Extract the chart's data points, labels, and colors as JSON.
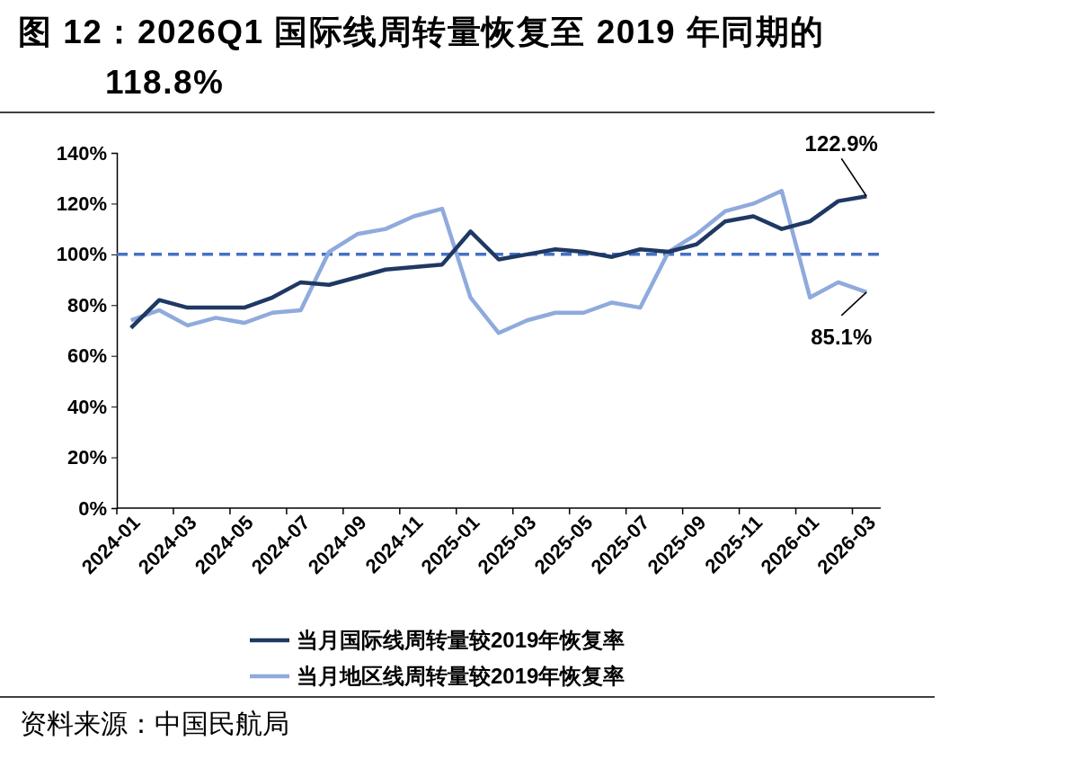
{
  "chart_data": {
    "type": "line",
    "title": "图 12：2026Q1 国际线周转量恢复至 2019 年同期的 118.8%",
    "categories": [
      "2024-01",
      null,
      "2024-03",
      null,
      "2024-05",
      null,
      "2024-07",
      null,
      "2024-09",
      null,
      "2024-11",
      null,
      "2025-01",
      null,
      "2025-03",
      null,
      "2025-05",
      null,
      "2025-07",
      null,
      "2025-09",
      null,
      "2025-11",
      null,
      "2026-01",
      null,
      "2026-03"
    ],
    "series": [
      {
        "name": "当月国际线周转量较2019年恢复率",
        "color": "#1f3864",
        "values": [
          71,
          82,
          79,
          79,
          79,
          83,
          89,
          88,
          91,
          94,
          95,
          96,
          109,
          98,
          100,
          102,
          101,
          99,
          102,
          101,
          104,
          113,
          115,
          110,
          113,
          121,
          122.9
        ],
        "value_labels": [
          null,
          null,
          null,
          null,
          null,
          null,
          null,
          null,
          null,
          null,
          null,
          null,
          null,
          null,
          null,
          null,
          null,
          null,
          null,
          null,
          null,
          null,
          null,
          null,
          null,
          null,
          "122.9%"
        ]
      },
      {
        "name": "当月地区线周转量较2019年恢复率",
        "color": "#8faadc",
        "values": [
          74,
          78,
          72,
          75,
          73,
          77,
          78,
          101,
          108,
          110,
          115,
          118,
          83,
          69,
          74,
          77,
          77,
          81,
          79,
          101,
          108,
          117,
          120,
          125,
          83,
          89,
          85.1
        ],
        "value_labels": [
          null,
          null,
          null,
          null,
          null,
          null,
          null,
          null,
          null,
          null,
          null,
          null,
          null,
          null,
          null,
          null,
          null,
          null,
          null,
          null,
          null,
          null,
          null,
          null,
          null,
          null,
          "85.1%"
        ]
      }
    ],
    "ylim": [
      0,
      140
    ],
    "yticks": [
      {
        "value": 0,
        "label": "0%"
      },
      {
        "value": 20,
        "label": "20%"
      },
      {
        "value": 40,
        "label": "40%"
      },
      {
        "value": 60,
        "label": "60%"
      },
      {
        "value": 80,
        "label": "80%"
      },
      {
        "value": 100,
        "label": "100%"
      },
      {
        "value": 120,
        "label": "120%"
      },
      {
        "value": 140,
        "label": "140%"
      }
    ],
    "ref_lines": [
      {
        "axis": "y",
        "value": 100,
        "color": "#4472c4",
        "line_style": "dashed"
      }
    ],
    "annotations": [
      "资料来源：中国民航局"
    ],
    "legend": "bottom",
    "grid": false,
    "line_style": "solid",
    "marker": "none"
  }
}
